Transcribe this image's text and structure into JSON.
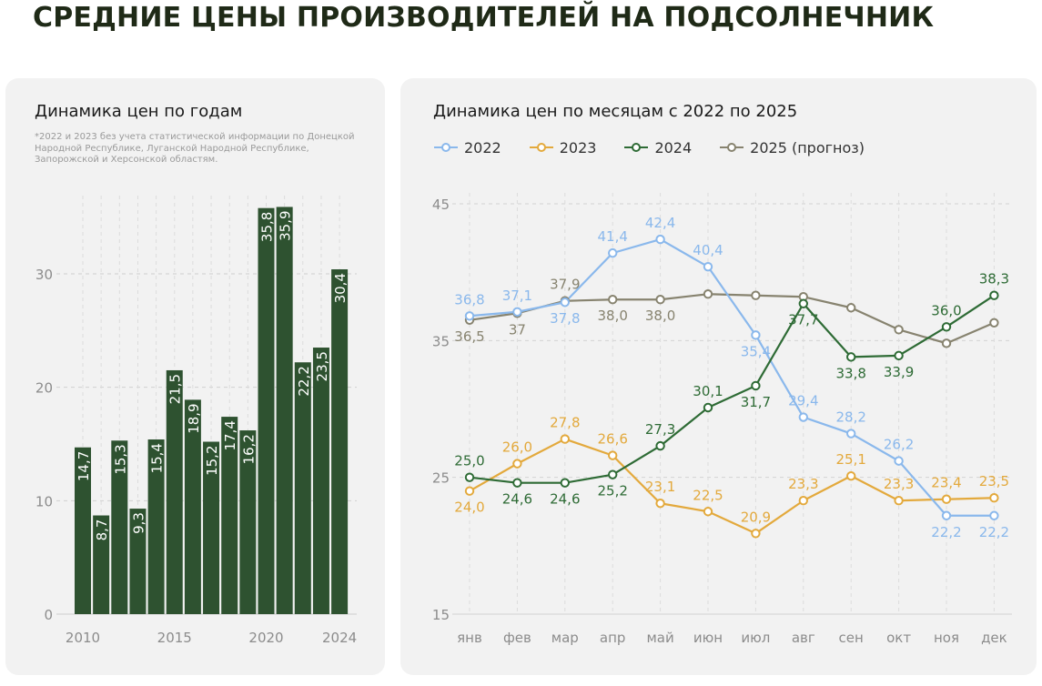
{
  "page": {
    "title": "СРЕДНИЕ ЦЕНЫ ПРОИЗВОДИТЕЛЕЙ НА ПОДСОЛНЕЧНИК"
  },
  "left_panel": {
    "title": "Динамика цен по годам",
    "note": "*2022 и 2023 без учета статистической информации по Донецкой Народной Республике, Луганской Народной Республике, Запорожской и Херсонской областям."
  },
  "right_panel": {
    "title": "Динамика цен по месяцам с 2022 по 2025"
  },
  "chart_data": [
    {
      "type": "bar",
      "title": "Динамика цен по годам",
      "categories": [
        "2010",
        "2011",
        "2012",
        "2013",
        "2014",
        "2015",
        "2016",
        "2017",
        "2018",
        "2019",
        "2020",
        "2021",
        "2022",
        "2023",
        "2024"
      ],
      "values": [
        14.7,
        8.7,
        15.3,
        9.3,
        15.4,
        21.5,
        18.9,
        15.2,
        17.4,
        16.2,
        35.8,
        35.9,
        22.2,
        23.5,
        30.4
      ],
      "value_labels": [
        "14,7",
        "8,7",
        "15,3",
        "9,3",
        "15,4",
        "21,5",
        "18,9",
        "15,2",
        "17,4",
        "16,2",
        "35,8",
        "35,9",
        "22,2",
        "23,5",
        "30,4"
      ],
      "x_tick_labels": [
        "2010",
        "2015",
        "2020",
        "2024"
      ],
      "x_tick_categories": [
        "2010",
        "2015",
        "2020",
        "2024"
      ],
      "y_ticks": [
        0,
        10,
        20,
        30
      ],
      "ylim": [
        0,
        37
      ],
      "bar_color": "#2e5230",
      "grid": true
    },
    {
      "type": "line",
      "title": "Динамика цен по месяцам с 2022 по 2025",
      "categories": [
        "янв",
        "фев",
        "мар",
        "апр",
        "май",
        "июн",
        "июл",
        "авг",
        "сен",
        "окт",
        "ноя",
        "дек"
      ],
      "y_ticks": [
        15,
        25,
        35,
        45
      ],
      "ylim": [
        15,
        45
      ],
      "grid": true,
      "legend_position": "top-left",
      "series": [
        {
          "name": "2022",
          "color": "#8ab8ec",
          "values": [
            36.8,
            37.1,
            37.8,
            41.4,
            42.4,
            40.4,
            35.4,
            29.4,
            28.2,
            26.2,
            22.2,
            22.2
          ],
          "labels": [
            "36,8",
            "37,1",
            "37,8",
            "41,4",
            "42,4",
            "40,4",
            "35,4",
            "29,4",
            "28,2",
            "26,2",
            "22,2",
            "22,2"
          ],
          "label_pos": [
            "above",
            "above",
            "below",
            "above",
            "above",
            "above",
            "below",
            "above",
            "above",
            "above",
            "below",
            "below"
          ]
        },
        {
          "name": "2023",
          "color": "#e3a93c",
          "values": [
            24.0,
            26.0,
            27.8,
            26.6,
            23.1,
            22.5,
            20.9,
            23.3,
            25.1,
            23.3,
            23.4,
            23.5
          ],
          "labels": [
            "24,0",
            "26,0",
            "27,8",
            "26,6",
            "23,1",
            "22,5",
            "20,9",
            "23,3",
            "25,1",
            "23,3",
            "23,4",
            "23,5"
          ],
          "label_pos": [
            "below",
            "above",
            "above",
            "above",
            "above",
            "above",
            "above",
            "above",
            "above",
            "above",
            "above",
            "above"
          ]
        },
        {
          "name": "2024",
          "color": "#2e6b35",
          "values": [
            25.0,
            24.6,
            24.6,
            25.2,
            27.3,
            30.1,
            31.7,
            37.7,
            33.8,
            33.9,
            36.0,
            38.3
          ],
          "labels": [
            "25,0",
            "24,6",
            "24,6",
            "25,2",
            "27,3",
            "30,1",
            "31,7",
            "37,7",
            "33,8",
            "33,9",
            "36,0",
            "38,3"
          ],
          "label_pos": [
            "above",
            "below",
            "below",
            "below",
            "above",
            "above",
            "below",
            "below",
            "below",
            "below",
            "above",
            "above"
          ]
        },
        {
          "name": "2025 (прогноз)",
          "color": "#87836f",
          "values": [
            36.5,
            37.0,
            37.9,
            38.0,
            38.0,
            38.4,
            38.3,
            38.2,
            37.4,
            35.8,
            34.8,
            36.3
          ],
          "labels": [
            "36,5",
            "37",
            "37,9",
            "38,0",
            "38,0",
            "",
            "",
            "",
            "",
            "",
            "",
            ""
          ],
          "label_pos": [
            "below",
            "below",
            "above",
            "below",
            "below",
            "none",
            "none",
            "none",
            "none",
            "none",
            "none",
            "none"
          ]
        }
      ]
    }
  ]
}
